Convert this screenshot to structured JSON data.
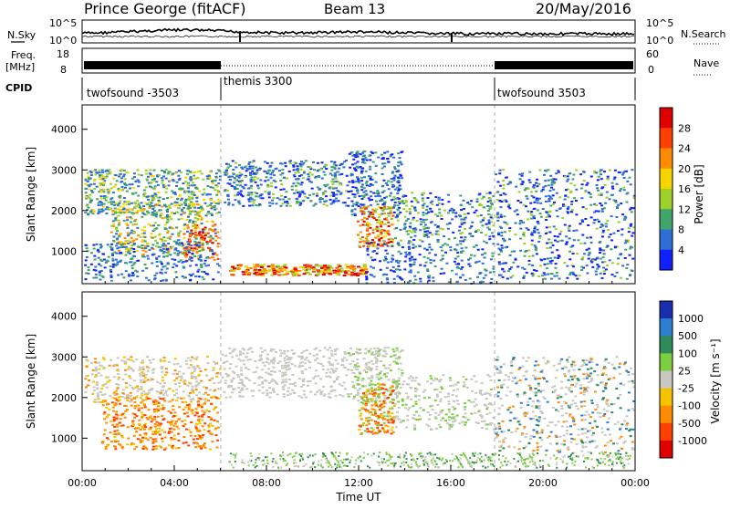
{
  "header": {
    "station": "Prince George (fitACF)",
    "beam": "Beam 13",
    "date": "20/May/2016"
  },
  "panels": {
    "noise": {
      "left_label": "N.Sky",
      "right_label": "N.Search",
      "left_ticks": [
        "10^5",
        "10^0"
      ],
      "right_ticks": [
        "10^5",
        "10^0"
      ]
    },
    "freq": {
      "left_label_1": "Freq.",
      "left_label_2": "[MHz]",
      "right_label": "Nave",
      "left_ticks": [
        "18",
        "8"
      ],
      "right_ticks": [
        "60",
        "0"
      ]
    },
    "cpid": {
      "label": "CPID",
      "entries": [
        "twofsound -3503",
        "themis 3300",
        "twofsound 3503"
      ]
    }
  },
  "chart_data": [
    {
      "type": "heatmap",
      "name": "power-panel",
      "ylabel": "Slant Range [km]",
      "yticks": [
        "4000",
        "3000",
        "2000",
        "1000"
      ],
      "ylim": [
        200,
        4600
      ],
      "x_tick_labels": [
        "00:00",
        "04:00",
        "08:00",
        "12:00",
        "16:00",
        "20:00",
        "00:00"
      ],
      "colorbar": {
        "label": "Power [dB]",
        "ticks": [
          "28",
          "24",
          "20",
          "16",
          "12",
          "8",
          "4"
        ],
        "colors": [
          "#e00000",
          "#ff4000",
          "#ff8c00",
          "#f5d400",
          "#9dd12a",
          "#3fa66a",
          "#2e6fd6",
          "#1020ff"
        ]
      }
    },
    {
      "type": "heatmap",
      "name": "velocity-panel",
      "ylabel": "Slant Range [km]",
      "yticks": [
        "4000",
        "3000",
        "2000",
        "1000"
      ],
      "ylim": [
        200,
        4600
      ],
      "x_tick_labels": [
        "00:00",
        "04:00",
        "08:00",
        "12:00",
        "16:00",
        "20:00",
        "00:00"
      ],
      "xlabel": "Time UT",
      "colorbar": {
        "label": "Velocity [m s⁻¹]",
        "ticks": [
          "1000",
          "500",
          "100",
          "25",
          "-25",
          "-100",
          "-500",
          "-1000"
        ],
        "colors": [
          "#1a2db0",
          "#2a7fd0",
          "#2e8b57",
          "#7ccd3f",
          "#c8c8c0",
          "#f5c400",
          "#ff8c00",
          "#ff4000",
          "#e00000"
        ]
      }
    }
  ]
}
